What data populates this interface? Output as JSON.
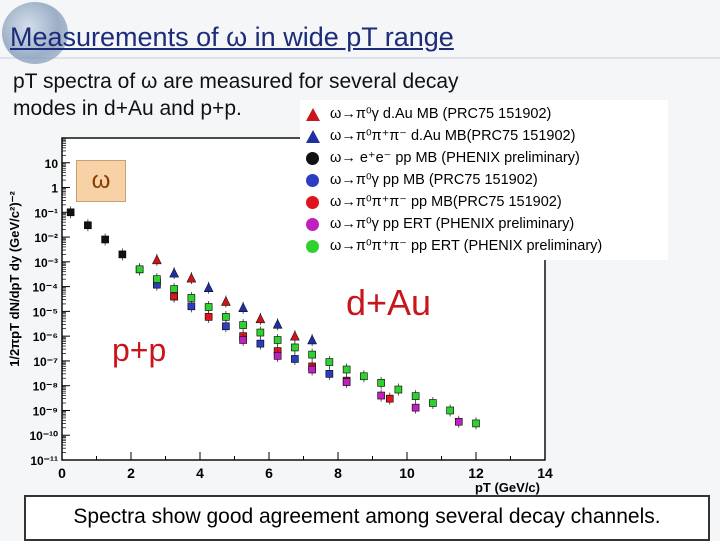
{
  "slide": {
    "title": "Measurements of ω in wide pT range",
    "intro_line1": "pT spectra of ω are measured  for several decay",
    "intro_line2": "modes in d+Au and p+p.",
    "caption": "Spectra show good agreement among several decay channels."
  },
  "colors": {
    "title": "#1c2c7a",
    "annotation": "#c8161d",
    "dau_red": "#c8161d",
    "dau_blue": "#1f2fa0",
    "pp_black": "#111111",
    "pp_blue": "#2c3ec0",
    "pp_red": "#e0141e",
    "pp_magenta": "#c020c0",
    "pp_green": "#2fd02f"
  },
  "chart_data": {
    "type": "scatter",
    "ylog": true,
    "xlabel": "pT (GeV/c)",
    "ylabel": "1/2πpT dN/dpT dy (GeV/c²)⁻²",
    "xlim": [
      0,
      14
    ],
    "ylim": [
      1e-11,
      100
    ],
    "x_ticks": [
      "0",
      "2",
      "4",
      "6",
      "8",
      "10",
      "12",
      "14"
    ],
    "y_ticks": [
      "10",
      "1",
      "10⁻¹",
      "10⁻²",
      "10⁻³",
      "10⁻⁴",
      "10⁻⁵",
      "10⁻⁶",
      "10⁻⁷",
      "10⁻⁸",
      "10⁻⁹",
      "10⁻¹⁰",
      "10⁻¹¹"
    ],
    "annotations": [
      "ω",
      "d+Au",
      "p+p"
    ],
    "legend_position": "top-right",
    "series": [
      {
        "name": "ω→π⁰γ d.Au MB (PRC75 151902)",
        "symbol": "triangle",
        "color": "#c8161d",
        "x": [
          2.75,
          3.75,
          4.75,
          5.75,
          6.75
        ],
        "y": [
          0.0012,
          0.00022,
          2.5e-05,
          5e-06,
          1e-06
        ]
      },
      {
        "name": "ω→π⁰π⁺π⁻ d.Au MB(PRC75 151902)",
        "symbol": "triangle",
        "color": "#1f2fa0",
        "x": [
          3.25,
          4.25,
          5.25,
          6.25,
          7.25
        ],
        "y": [
          0.00035,
          9e-05,
          1.4e-05,
          3e-06,
          7e-07
        ]
      },
      {
        "name": "ω→ e⁺e⁻ pp MB (PHENIX preliminary)",
        "symbol": "circle",
        "color": "#111111",
        "x": [
          0.25,
          0.75,
          1.25,
          1.75,
          2.25,
          2.75,
          3.25
        ],
        "y": [
          0.1,
          0.03,
          0.008,
          0.002,
          0.0005,
          0.00015,
          4e-05
        ]
      },
      {
        "name": "ω→π⁰γ pp MB (PRC75 151902)",
        "symbol": "circle",
        "color": "#2c3ec0",
        "x": [
          2.75,
          3.75,
          4.75,
          5.75,
          6.75,
          7.75
        ],
        "y": [
          0.00012,
          1.6e-05,
          2.5e-06,
          5e-07,
          1.2e-07,
          3e-08
        ]
      },
      {
        "name": "ω→π⁰π⁺π⁻ pp MB(PRC75 151902)",
        "symbol": "circle",
        "color": "#e0141e",
        "x": [
          3.25,
          4.25,
          5.25,
          6.25,
          7.25,
          8.25,
          9.5
        ],
        "y": [
          4e-05,
          6e-06,
          1e-06,
          2.5e-07,
          6e-08,
          1.6e-08,
          3e-09
        ]
      },
      {
        "name": "ω→π⁰γ pp ERT (PHENIX preliminary)",
        "symbol": "circle",
        "color": "#c020c0",
        "x": [
          5.25,
          6.25,
          7.25,
          8.25,
          9.25,
          10.25,
          11.5
        ],
        "y": [
          7e-07,
          1.6e-07,
          4.5e-08,
          1.4e-08,
          4e-09,
          1.3e-09,
          3.5e-10
        ]
      },
      {
        "name": "ω→π⁰π⁺π⁻ pp ERT (PHENIX preliminary)",
        "symbol": "circle",
        "color": "#2fd02f",
        "x": [
          2.25,
          2.75,
          3.25,
          3.75,
          4.25,
          4.75,
          5.25,
          5.75,
          6.25,
          6.75,
          7.25,
          7.75,
          8.25,
          8.75,
          9.25,
          9.75,
          10.25,
          10.75,
          11.25,
          12.0
        ],
        "y": [
          0.0005,
          0.0002,
          8e-05,
          3.5e-05,
          1.5e-05,
          6e-06,
          2.8e-06,
          1.4e-06,
          7e-07,
          3.5e-07,
          1.8e-07,
          9e-08,
          4.5e-08,
          2.4e-08,
          1.3e-08,
          7e-09,
          3.8e-09,
          2e-09,
          1e-09,
          3e-10
        ]
      }
    ]
  }
}
